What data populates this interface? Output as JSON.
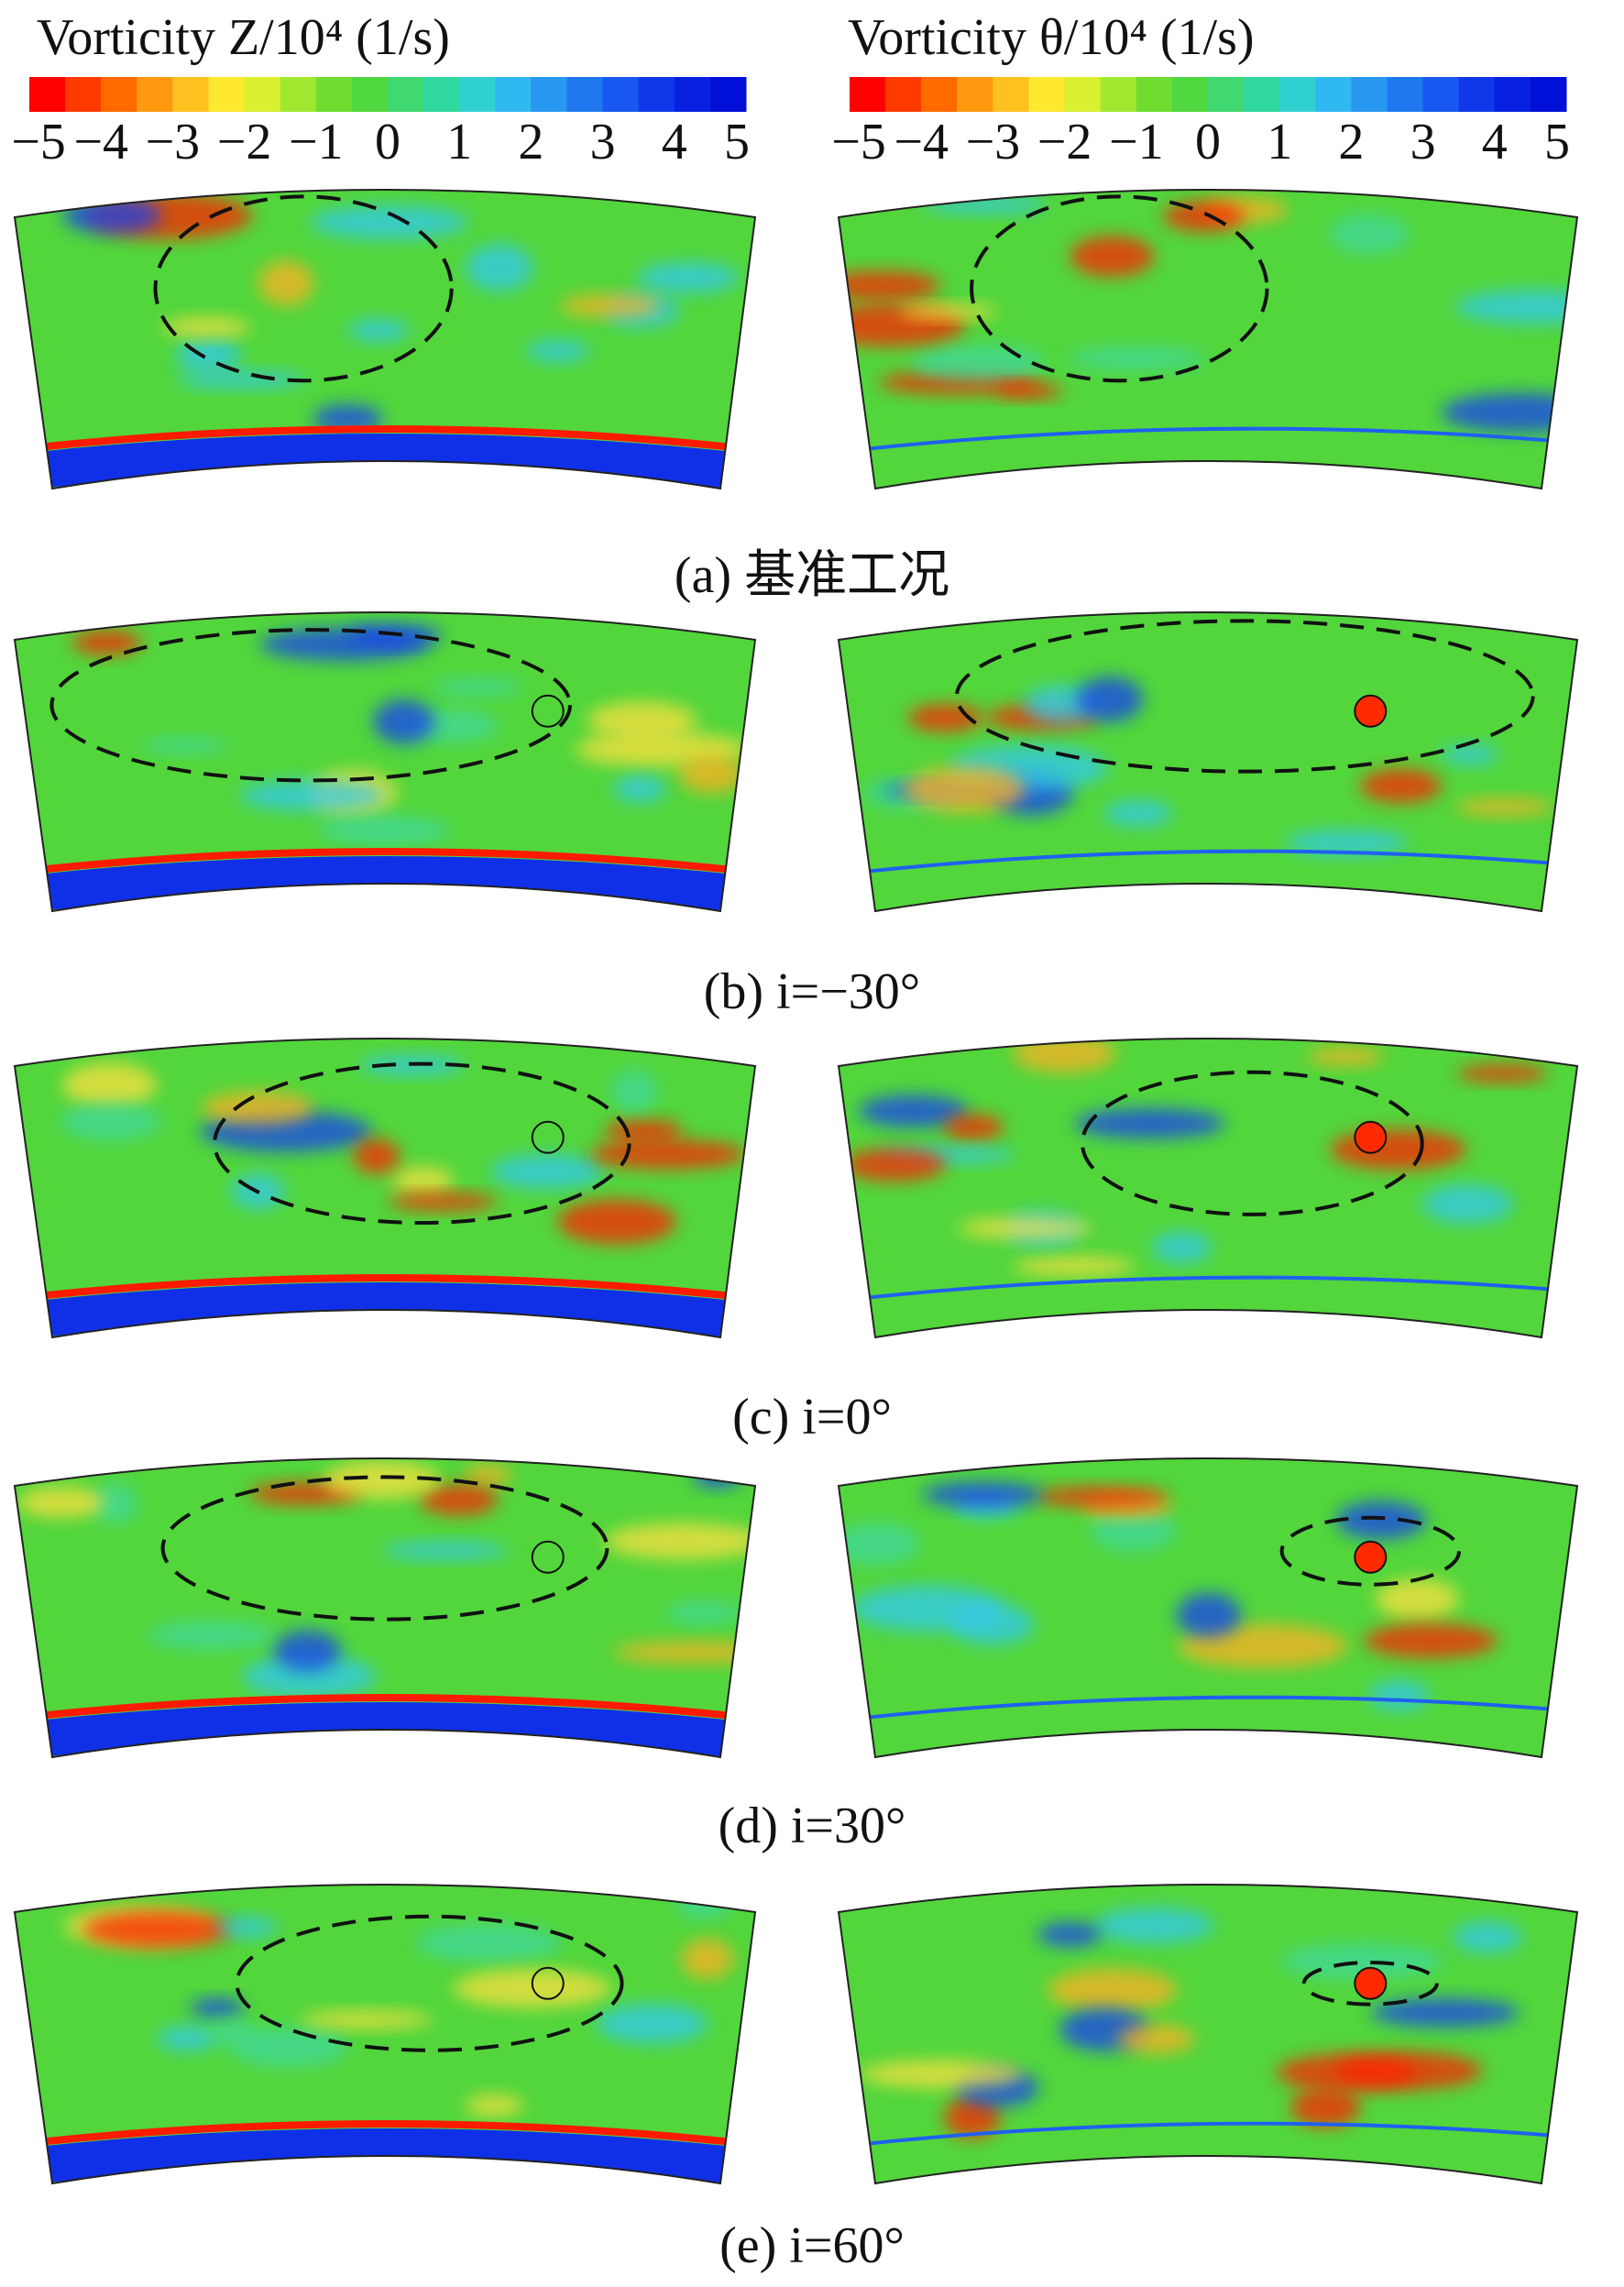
{
  "colorbars": [
    {
      "title": "Vorticity Z/10⁴ (1/s)",
      "lim": [
        -5,
        5
      ],
      "ticks": [
        {
          "value": -5,
          "label": "−5"
        },
        {
          "value": -4,
          "label": "−4"
        },
        {
          "value": -3,
          "label": "−3"
        },
        {
          "value": -2,
          "label": "−2"
        },
        {
          "value": -1,
          "label": "−1"
        },
        0,
        1,
        2,
        3,
        4,
        5
      ],
      "colors": [
        "#ff0000",
        "#ff3a00",
        "#ff6a00",
        "#ff9a10",
        "#ffc020",
        "#ffe830",
        "#d8f030",
        "#a0e830",
        "#70dc30",
        "#50d840",
        "#40d870",
        "#30d8a0",
        "#30d0d0",
        "#30b8f0",
        "#2898f0",
        "#2078f0",
        "#1858f0",
        "#1038e8",
        "#0820e0",
        "#0010d8"
      ]
    },
    {
      "title": "Vorticity θ/10⁴ (1/s)",
      "lim": [
        -5,
        5
      ],
      "ticks": [
        {
          "value": -5,
          "label": "−5"
        },
        {
          "value": -4,
          "label": "−4"
        },
        {
          "value": -3,
          "label": "−3"
        },
        {
          "value": -2,
          "label": "−2"
        },
        {
          "value": -1,
          "label": "−1"
        },
        0,
        1,
        2,
        3,
        4,
        5
      ],
      "colors": [
        "#ff0000",
        "#ff3a00",
        "#ff6a00",
        "#ff9a10",
        "#ffc020",
        "#ffe830",
        "#d8f030",
        "#a0e830",
        "#70dc30",
        "#50d840",
        "#40d870",
        "#30d8a0",
        "#30d0d0",
        "#30b8f0",
        "#2898f0",
        "#2078f0",
        "#1858f0",
        "#1038e8",
        "#0820e0",
        "#0010d8"
      ]
    }
  ],
  "captions": [
    "(a) 基准工况",
    "(b) i=−30°",
    "(c) i=0°",
    "(d) i=30°",
    "(e) i=60°"
  ]
}
